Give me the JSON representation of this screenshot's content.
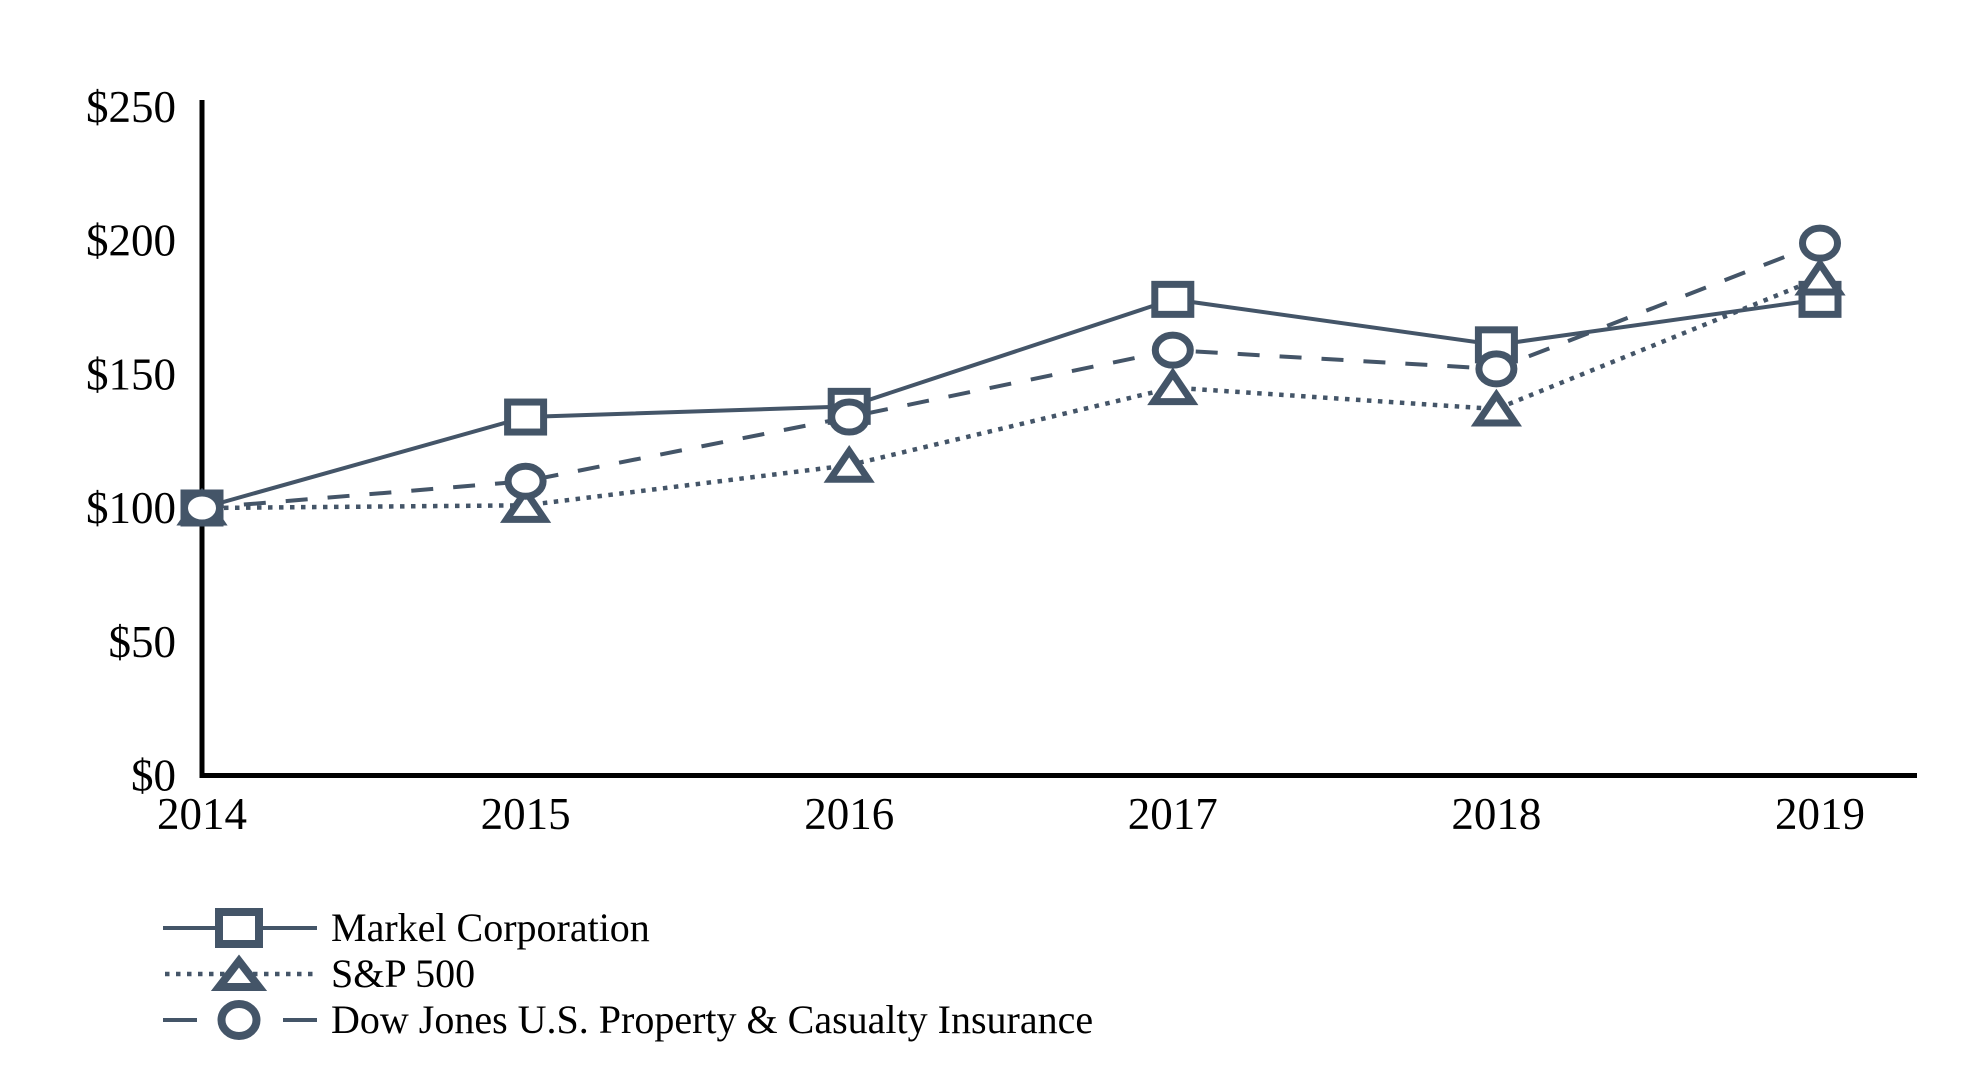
{
  "chart_data": {
    "type": "line",
    "title": "",
    "categories": [
      "2014",
      "2015",
      "2016",
      "2017",
      "2018",
      "2019"
    ],
    "xlabel": "",
    "ylabel": "",
    "ylim": [
      0,
      250
    ],
    "y_tick_step": 50,
    "y_tick_labels": [
      "$0",
      "$50",
      "$100",
      "$150",
      "$200",
      "$250"
    ],
    "grid": false,
    "legend_position": "bottom-left",
    "series": [
      {
        "name": "Markel Corporation",
        "values": [
          100,
          134,
          138,
          178,
          161,
          178
        ],
        "line_style": "solid",
        "marker": "square"
      },
      {
        "name": "S&P 500",
        "values": [
          100,
          101,
          116,
          145,
          137,
          186
        ],
        "line_style": "dotted",
        "marker": "triangle"
      },
      {
        "name": "Dow Jones U.S. Property & Casualty Insurance",
        "values": [
          100,
          110,
          134,
          159,
          152,
          199
        ],
        "line_style": "dashed",
        "marker": "circle"
      }
    ],
    "colors": {
      "series": "#445568",
      "axis": "#000000",
      "text": "#000000",
      "marker_fill": "#ffffff",
      "background": "#ffffff"
    }
  }
}
